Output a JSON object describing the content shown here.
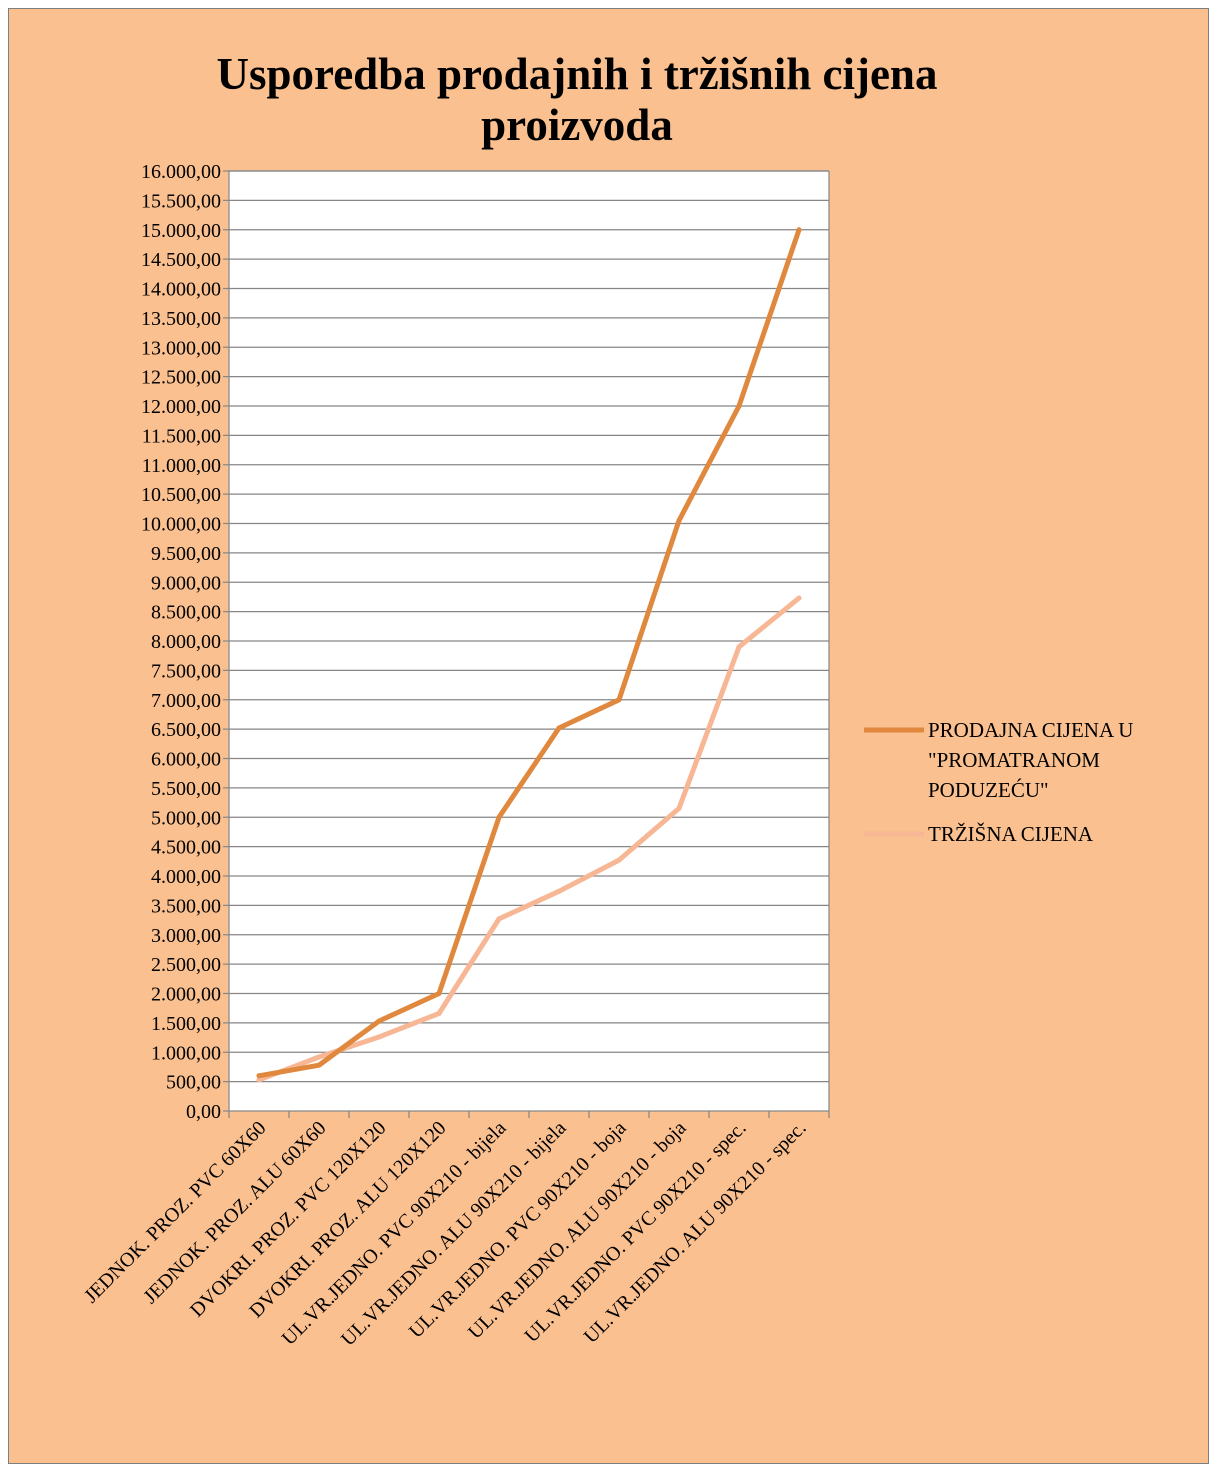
{
  "colors": {
    "background": "#fac090",
    "plot_area": "#ffffff",
    "gridline": "#868686",
    "series_1": "#e0893e",
    "series_2": "#f7b795"
  },
  "chart_data": {
    "type": "line",
    "title": "Usporedba prodajnih i tržišnih cijena proizvoda",
    "title_lines": [
      "Usporedba prodajnih i tržišnih cijena",
      "proizvoda"
    ],
    "xlabel": "",
    "ylabel": "",
    "ylim": [
      0,
      16000
    ],
    "y_step": 500,
    "y_ticks": [
      "0,00",
      "500,00",
      "1.000,00",
      "1.500,00",
      "2.000,00",
      "2.500,00",
      "3.000,00",
      "3.500,00",
      "4.000,00",
      "4.500,00",
      "5.000,00",
      "5.500,00",
      "6.000,00",
      "6.500,00",
      "7.000,00",
      "7.500,00",
      "8.000,00",
      "8.500,00",
      "9.000,00",
      "9.500,00",
      "10.000,00",
      "10.500,00",
      "11.000,00",
      "11.500,00",
      "12.000,00",
      "12.500,00",
      "13.000,00",
      "13.500,00",
      "14.000,00",
      "14.500,00",
      "15.000,00",
      "15.500,00",
      "16.000,00"
    ],
    "grid": "horizontal",
    "legend_position": "right",
    "categories": [
      "JEDNOK. PROZ. PVC 60X60",
      "JEDNOK. PROZ. ALU 60X60",
      "DVOKRI. PROZ. PVC 120X120",
      "DVOKRI. PROZ. ALU 120X120",
      "UL.VR.JEDNO. PVC 90X210 - bijela",
      "UL.VR.JEDNO. ALU 90X210 - bijela",
      "UL.VR.JEDNO. PVC 90X210 - boja",
      "UL.VR.JEDNO. ALU 90X210 - boja",
      "UL.VR.JEDNO. PVC 90X210 - spec.",
      "UL.VR.JEDNO. ALU 90X210 - spec."
    ],
    "series": [
      {
        "name": "PRODAJNA CIJENA U \"PROMATRANOM PODUZEĆU\"",
        "legend_lines": [
          "PRODAJNA CIJENA U",
          "\"PROMATRANOM",
          "PODUZEĆU\""
        ],
        "color": "#e0893e",
        "values": [
          600,
          780,
          1530,
          2000,
          5000,
          6520,
          7000,
          10050,
          12000,
          15000
        ]
      },
      {
        "name": "TRŽIŠNA CIJENA",
        "legend_lines": [
          "TRŽIŠNA CIJENA"
        ],
        "color": "#f7b795",
        "values": [
          530,
          920,
          1260,
          1660,
          3270,
          3740,
          4270,
          5150,
          7900,
          8730
        ]
      }
    ]
  }
}
